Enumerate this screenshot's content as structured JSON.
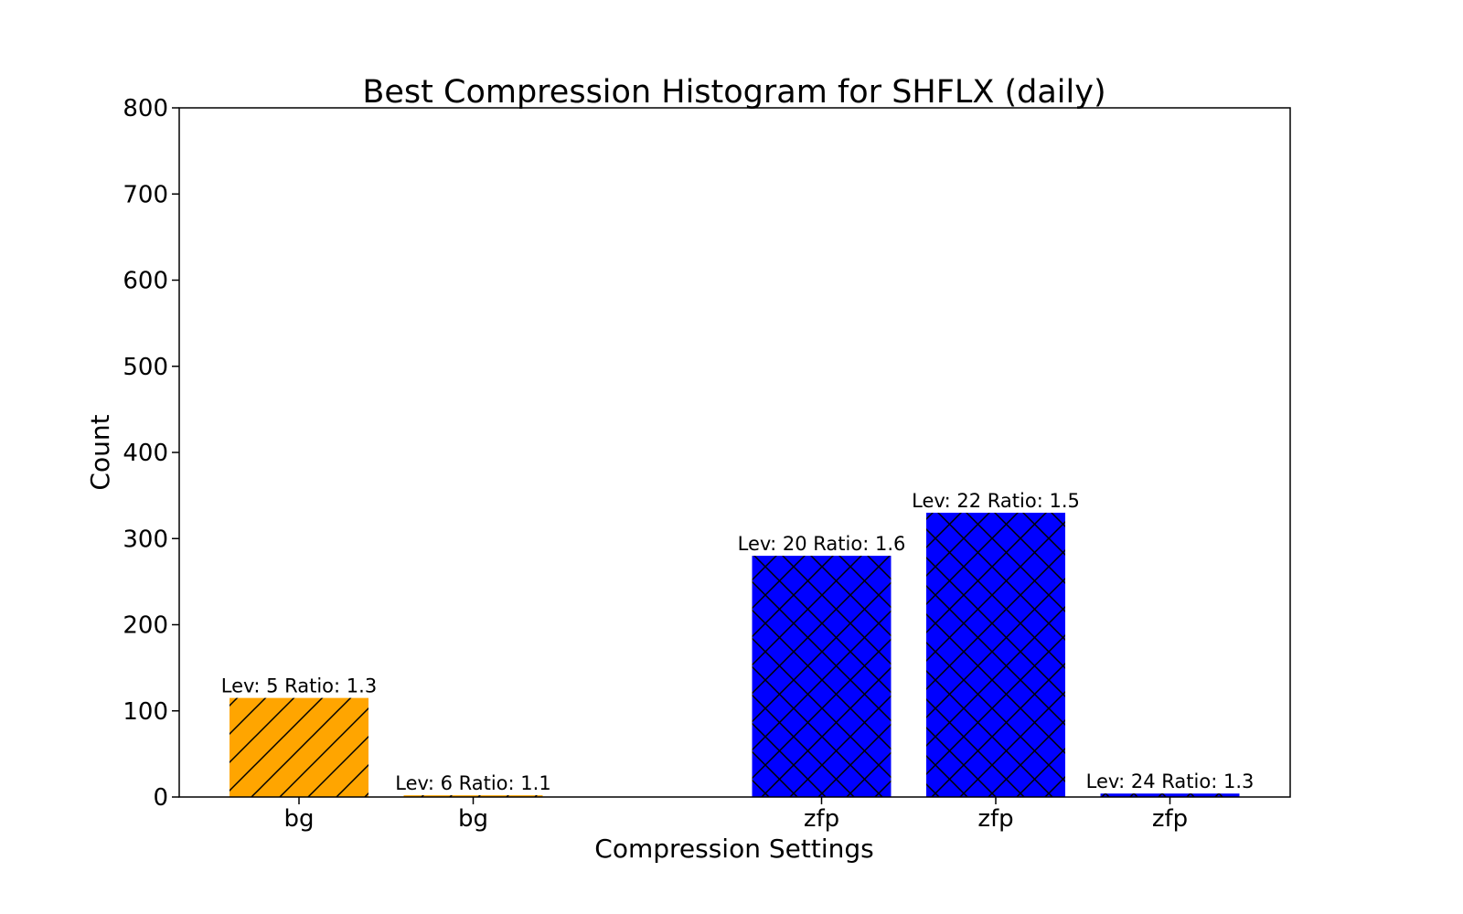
{
  "chart_data": {
    "type": "bar",
    "title": "Best Compression Histogram for SHFLX (daily)",
    "xlabel": "Compression Settings",
    "ylabel": "Count",
    "ylim": [
      0,
      800
    ],
    "yticks": [
      "0",
      "100",
      "200",
      "300",
      "400",
      "500",
      "600",
      "700",
      "800"
    ],
    "grid": false,
    "categories": [
      "bg",
      "bg",
      "zfp",
      "zfp",
      "zfp"
    ],
    "values": [
      115,
      2,
      280,
      330,
      4
    ],
    "bar_labels": [
      "Lev: 5 Ratio: 1.3",
      "Lev: 6 Ratio: 1.1",
      "Lev: 20 Ratio: 1.6",
      "Lev: 22 Ratio: 1.5",
      "Lev: 24 Ratio: 1.3"
    ],
    "x_slots": [
      0,
      1,
      3,
      4,
      5
    ],
    "colors": [
      "#ffa500",
      "#ffa500",
      "#0000ff",
      "#0000ff",
      "#0000ff"
    ],
    "hatch": [
      "diagonal",
      "diagonal",
      "crosshatch",
      "crosshatch",
      "crosshatch"
    ]
  }
}
